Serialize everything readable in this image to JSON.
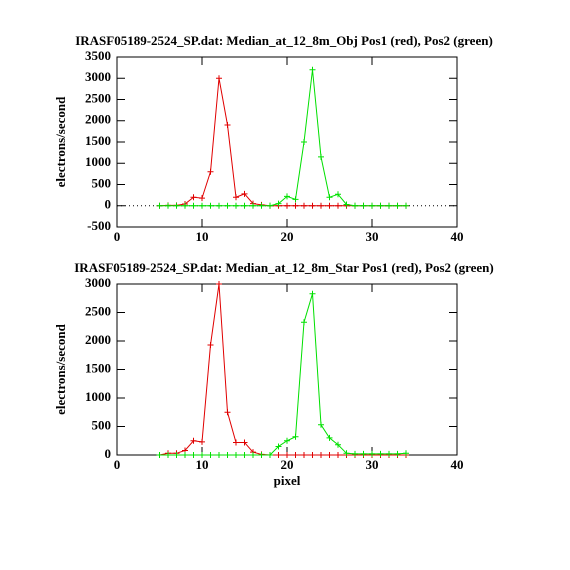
{
  "chart_data": [
    {
      "type": "line",
      "title": "IRASF05189-2524_SP.dat: Median_at_12_8m_Obj Pos1 (red), Pos2 (green)",
      "y_label": "electrons/second",
      "x": [
        5,
        6,
        7,
        8,
        9,
        10,
        11,
        12,
        13,
        14,
        15,
        16,
        17,
        18,
        19,
        20,
        21,
        22,
        23,
        24,
        25,
        26,
        27,
        28,
        29,
        30,
        31,
        32,
        33,
        34
      ],
      "series": [
        {
          "name": "Pos1",
          "color": "#e00000",
          "values": [
            0,
            10,
            10,
            40,
            200,
            180,
            800,
            3000,
            1900,
            200,
            280,
            50,
            20,
            0,
            0,
            0,
            0,
            0,
            0,
            0,
            0,
            0,
            0,
            0,
            0,
            0,
            0,
            0,
            0,
            0
          ]
        },
        {
          "name": "Pos2",
          "color": "#00e000",
          "values": [
            0,
            0,
            0,
            0,
            0,
            0,
            0,
            0,
            0,
            0,
            0,
            0,
            0,
            0,
            50,
            220,
            150,
            1500,
            3200,
            1150,
            200,
            270,
            30,
            0,
            0,
            0,
            0,
            0,
            0,
            0
          ]
        }
      ],
      "xlim": [
        0,
        40
      ],
      "xticks": [
        0,
        10,
        20,
        30,
        40
      ],
      "ylim": [
        -500,
        3500
      ],
      "yticks": [
        -500,
        0,
        500,
        1000,
        1500,
        2000,
        2500,
        3000,
        3500
      ],
      "zero_line": true
    },
    {
      "type": "line",
      "title": "IRASF05189-2524_SP.dat: Median_at_12_8m_Star Pos1 (red), Pos2 (green)",
      "y_label": "electrons/second",
      "x_label": "pixel",
      "x": [
        5,
        6,
        7,
        8,
        9,
        10,
        11,
        12,
        13,
        14,
        15,
        16,
        17,
        18,
        19,
        20,
        21,
        22,
        23,
        24,
        25,
        26,
        27,
        28,
        29,
        30,
        31,
        32,
        33,
        34
      ],
      "series": [
        {
          "name": "Pos1",
          "color": "#e00000",
          "values": [
            0,
            30,
            30,
            80,
            250,
            230,
            1930,
            3000,
            750,
            220,
            220,
            50,
            10,
            0,
            0,
            0,
            0,
            0,
            0,
            0,
            0,
            0,
            0,
            0,
            0,
            0,
            0,
            0,
            0,
            0
          ]
        },
        {
          "name": "Pos2",
          "color": "#00e000",
          "values": [
            0,
            0,
            0,
            0,
            0,
            0,
            0,
            0,
            0,
            0,
            0,
            0,
            0,
            0,
            150,
            250,
            320,
            2330,
            2830,
            530,
            300,
            180,
            30,
            20,
            20,
            20,
            20,
            20,
            20,
            30
          ]
        }
      ],
      "xlim": [
        0,
        40
      ],
      "xticks": [
        0,
        10,
        20,
        30,
        40
      ],
      "ylim": [
        0,
        3000
      ],
      "yticks": [
        0,
        500,
        1000,
        1500,
        2000,
        2500,
        3000
      ],
      "zero_line": false
    }
  ]
}
